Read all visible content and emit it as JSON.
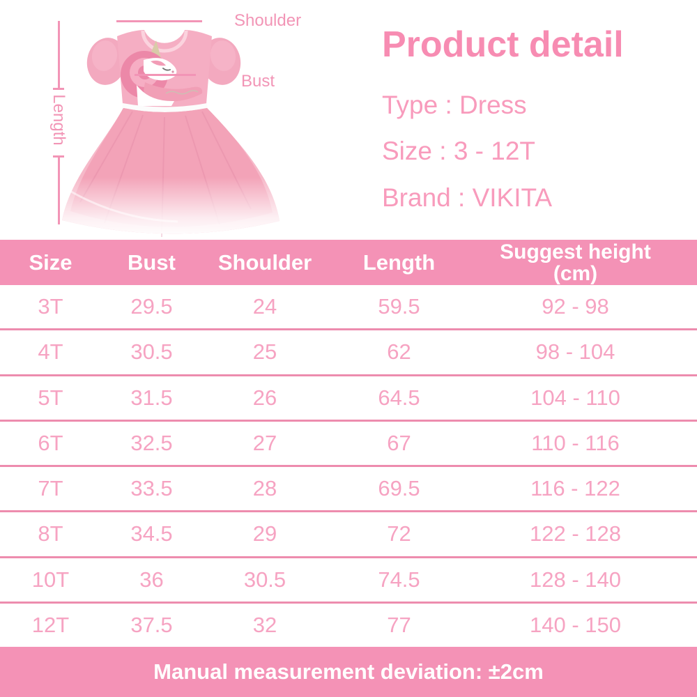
{
  "figure": {
    "annotations": {
      "length": "Length",
      "shoulder": "Shoulder",
      "bust": "Bust"
    },
    "illustration": "pink-unicorn-tutu-dress"
  },
  "product": {
    "title": "Product detail",
    "specs": [
      "Type : Dress",
      "Size : 3 - 12T",
      "Brand : VIKITA"
    ]
  },
  "table": {
    "columns": [
      "Size",
      "Bust",
      "Shoulder",
      "Length",
      "Suggest height"
    ],
    "last_column_sub": "(cm)",
    "rows": [
      [
        "3T",
        "29.5",
        "24",
        "59.5",
        "92 - 98"
      ],
      [
        "4T",
        "30.5",
        "25",
        "62",
        "98 - 104"
      ],
      [
        "5T",
        "31.5",
        "26",
        "64.5",
        "104 - 110"
      ],
      [
        "6T",
        "32.5",
        "27",
        "67",
        "110 - 116"
      ],
      [
        "7T",
        "33.5",
        "28",
        "69.5",
        "116 - 122"
      ],
      [
        "8T",
        "34.5",
        "29",
        "72",
        "122 - 128"
      ],
      [
        "10T",
        "36",
        "30.5",
        "74.5",
        "128 - 140"
      ],
      [
        "12T",
        "37.5",
        "32",
        "77",
        "140 - 150"
      ]
    ]
  },
  "footer": {
    "note": "Manual measurement deviation: ±2cm"
  },
  "colors": {
    "header_pink": "#f492b6",
    "banner_pink": "#f492b6",
    "row_text_pink": "#f6a3c2",
    "divider_pink": "#ed8cae",
    "annotation_pink": "#f295b6",
    "title_pink": "#f78cb2",
    "spec_text_pink": "#f89bbc",
    "text_white": "#ffffff"
  }
}
